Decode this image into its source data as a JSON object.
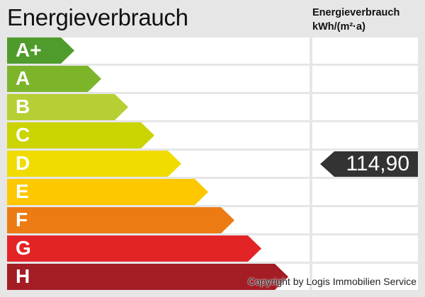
{
  "chart_data": {
    "type": "energy-label",
    "title": "Energieverbrauch",
    "column_header": [
      "Energieverbrauch",
      "kWh/(m²·a)"
    ],
    "classes": [
      {
        "label": "A+",
        "color": "#4f9c2c"
      },
      {
        "label": "A",
        "color": "#7db52a"
      },
      {
        "label": "B",
        "color": "#b7cf35"
      },
      {
        "label": "C",
        "color": "#cbd300"
      },
      {
        "label": "D",
        "color": "#f0dc00"
      },
      {
        "label": "E",
        "color": "#fdc800"
      },
      {
        "label": "F",
        "color": "#ec7b14"
      },
      {
        "label": "G",
        "color": "#e32426"
      },
      {
        "label": "H",
        "color": "#a41c24"
      }
    ],
    "value": "114,90",
    "value_class": "D",
    "indicator_color": "#333333"
  },
  "copyright": "Copyright by Logis Immobilien Service"
}
